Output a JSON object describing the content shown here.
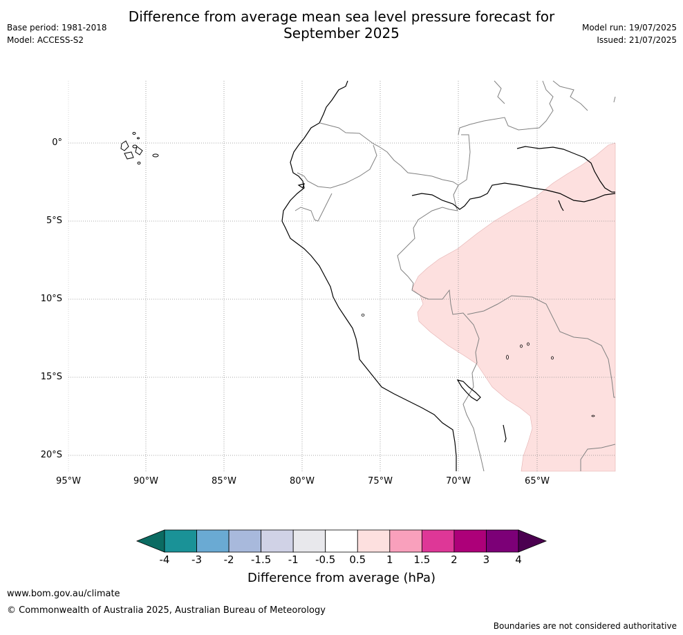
{
  "header": {
    "title_line1": "Difference from average mean sea level pressure forecast for",
    "title_line2": "September 2025",
    "base_period": "Base period: 1981-2018",
    "model": "Model: ACCESS-S2",
    "model_run": "Model run: 19/07/2025",
    "issued": "Issued: 21/07/2025"
  },
  "map": {
    "lat_labels": [
      "0°",
      "5°S",
      "10°S",
      "15°S",
      "20°S"
    ],
    "lon_labels": [
      "95°W",
      "90°W",
      "85°W",
      "80°W",
      "75°W",
      "70°W",
      "65°W"
    ],
    "anomaly_fill_color": "#fde0df"
  },
  "colorbar": {
    "title": "Difference from average (hPa)",
    "ticks": [
      "-4",
      "-3",
      "-2",
      "-1.5",
      "-1",
      "-0.5",
      "0.5",
      "1",
      "1.5",
      "2",
      "3",
      "4"
    ],
    "colors": [
      "#0b6b62",
      "#1a9297",
      "#6aaad3",
      "#a8b9dc",
      "#d0d2e6",
      "#e8e8ec",
      "#ffffff",
      "#fde0df",
      "#f9a0bc",
      "#de3797",
      "#ad0079",
      "#7c0077",
      "#4b0050"
    ]
  },
  "footer": {
    "website": "www.bom.gov.au/climate",
    "copyright": "© Commonwealth of Australia 2025, Australian Bureau of Meteorology",
    "disclaimer": "Boundaries are not considered authoritative"
  }
}
